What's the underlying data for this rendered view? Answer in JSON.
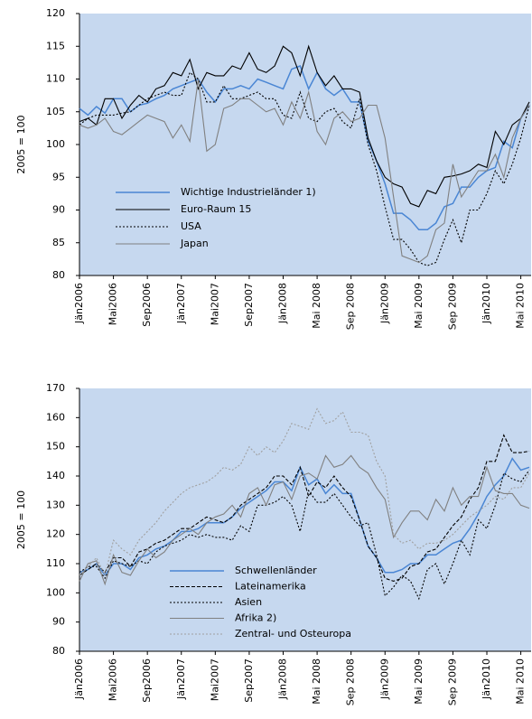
{
  "chart_data": [
    {
      "type": "line",
      "ylabel": "2005 = 100",
      "categories": [
        "Jän2006",
        null,
        null,
        null,
        "Mai2006",
        null,
        null,
        null,
        "Sep2006",
        null,
        null,
        null,
        "Jän2007",
        null,
        null,
        null,
        "Mai2007",
        null,
        null,
        null,
        "Sep2007",
        null,
        null,
        null,
        "Jän2008",
        null,
        null,
        null,
        "Mai 2008",
        null,
        null,
        null,
        "Sep 2008",
        null,
        null,
        null,
        "Jän2009",
        null,
        null,
        null,
        "Mai 2009",
        null,
        null,
        null,
        "Sep 2009",
        null,
        null,
        null,
        "Jän2010",
        null,
        null,
        null,
        "Mai 2010",
        null
      ],
      "ylim": [
        80,
        120
      ],
      "yticks": [
        80,
        85,
        90,
        95,
        100,
        105,
        110,
        115,
        120
      ],
      "series": [
        {
          "name": "Wichtige Industrieländer 1)",
          "color": "#4a86d4",
          "style": "solid",
          "values": [
            105.5,
            104.5,
            105.8,
            104.8,
            107,
            107,
            105,
            106,
            106.3,
            107,
            107.5,
            108.5,
            109,
            109.5,
            110,
            108,
            106.5,
            108.5,
            108.5,
            109,
            108.5,
            110,
            109.5,
            109,
            108.5,
            111.5,
            112,
            108.5,
            111,
            108.5,
            107.5,
            108.5,
            106.5,
            106.5,
            100.5,
            97.5,
            94,
            89.5,
            89.5,
            88.5,
            87,
            87,
            88,
            90.5,
            91,
            93.5,
            93.5,
            95,
            96,
            96.5,
            100.5,
            99.5,
            104,
            106
          ]
        },
        {
          "name": "Euro-Raum 15",
          "color": "#000000",
          "style": "solid",
          "values": [
            103.5,
            104,
            103,
            107,
            107,
            104,
            106,
            107.5,
            106.5,
            108.5,
            109,
            111,
            110.5,
            113,
            108.5,
            111,
            110.5,
            110.5,
            112,
            111.5,
            114,
            111.5,
            111,
            112,
            115,
            114,
            110.5,
            115,
            111,
            109,
            110.5,
            108.5,
            108.5,
            108,
            101,
            97.5,
            95,
            94,
            93.5,
            91,
            90.5,
            93,
            92.5,
            95,
            95.2,
            95.5,
            96,
            97,
            96.5,
            102,
            100,
            103,
            104,
            106.5
          ]
        },
        {
          "name": "USA",
          "color": "#000000",
          "style": "dotted",
          "values": [
            103,
            104,
            104.5,
            104.5,
            104.5,
            104.8,
            105,
            106,
            107,
            107.5,
            108,
            107.5,
            107.5,
            111,
            110,
            106.5,
            106.5,
            109,
            107,
            107,
            107.5,
            108,
            107,
            107,
            104.5,
            104,
            108,
            104,
            103.5,
            105,
            105.5,
            103.5,
            102.5,
            107,
            100,
            96,
            90.5,
            85.5,
            85.5,
            84,
            82,
            81.5,
            82,
            85.5,
            88.5,
            85,
            90,
            90,
            92.5,
            96,
            94,
            97,
            101,
            106
          ]
        },
        {
          "name": "Japan",
          "color": "#808080",
          "style": "solid",
          "values": [
            103,
            102.5,
            103,
            104,
            102,
            101.5,
            102.5,
            103.5,
            104.5,
            104,
            103.5,
            101,
            103,
            100.5,
            110,
            99,
            100,
            105.5,
            106,
            107,
            107,
            106,
            105,
            105.5,
            103,
            106.5,
            104,
            108,
            102,
            100,
            104,
            105,
            103.5,
            104,
            106,
            106,
            101,
            92,
            83,
            82.5,
            82,
            83,
            87,
            88,
            97,
            92,
            94,
            96,
            96,
            98.5,
            95,
            101,
            104,
            106
          ]
        }
      ]
    },
    {
      "type": "line",
      "ylabel": "2005 = 100",
      "categories": [
        "Jän2006",
        null,
        null,
        null,
        "Mai2006",
        null,
        null,
        null,
        "Sep2006",
        null,
        null,
        null,
        "Jän2007",
        null,
        null,
        null,
        "Mai2007",
        null,
        null,
        null,
        "Sep2007",
        null,
        null,
        null,
        "Jän2008",
        null,
        null,
        null,
        "Mai 2008",
        null,
        null,
        null,
        "Sep 2008",
        null,
        null,
        null,
        "Jän2009",
        null,
        null,
        null,
        "Mai 2009",
        null,
        null,
        null,
        "Sep 2009",
        null,
        null,
        null,
        "Jän2010",
        null,
        null,
        null,
        "Mai 2010",
        null
      ],
      "ylim": [
        80,
        170
      ],
      "yticks": [
        80,
        90,
        100,
        110,
        120,
        130,
        140,
        150,
        160,
        170
      ],
      "series": [
        {
          "name": "Schwellenländer",
          "color": "#4a86d4",
          "style": "solid",
          "values": [
            107,
            108,
            110,
            106,
            110,
            110,
            108,
            112,
            113,
            115,
            116,
            118,
            121,
            121,
            122,
            124,
            124,
            124,
            126,
            129,
            131,
            133,
            135,
            138,
            138,
            135,
            143,
            137,
            139,
            134,
            137,
            134,
            134,
            125,
            116,
            112,
            107,
            107,
            108,
            110,
            110,
            113,
            113,
            115,
            117,
            118,
            122,
            127,
            133,
            137,
            140,
            146,
            142,
            143
          ]
        },
        {
          "name": "Lateinamerika",
          "color": "#000000",
          "style": "dashed",
          "values": [
            106,
            108,
            110,
            107,
            112,
            112,
            109,
            114,
            115,
            117,
            118,
            120,
            122,
            122,
            124,
            126,
            125,
            124,
            126,
            130,
            132,
            134,
            136,
            140,
            140,
            137,
            143,
            133,
            138,
            136,
            140,
            136,
            133,
            125,
            116,
            112,
            105,
            104,
            105,
            109,
            110,
            114,
            115,
            119,
            123,
            126,
            132,
            136,
            145,
            145,
            154,
            148,
            148,
            148.5
          ]
        },
        {
          "name": "Asien",
          "color": "#000000",
          "style": "dotted",
          "values": [
            107,
            109,
            109,
            105,
            111,
            110,
            109,
            111,
            110,
            114,
            116,
            117,
            118,
            120,
            119,
            120,
            119,
            119,
            118,
            123,
            121,
            130,
            130,
            131,
            133,
            130,
            121,
            135,
            131,
            131,
            134,
            130,
            126,
            123,
            124,
            113,
            99,
            102,
            106,
            104,
            98,
            108,
            110,
            103,
            110,
            118,
            113,
            125,
            122,
            130,
            141,
            139,
            138,
            142
          ]
        },
        {
          "name": "Afrika 2)",
          "color": "#808080",
          "style": "solid",
          "values": [
            104,
            110,
            111,
            103,
            113,
            107,
            106,
            111,
            115,
            112,
            114,
            118,
            120,
            122,
            120,
            124,
            126,
            127,
            130,
            126,
            134,
            136,
            130,
            137,
            138,
            132,
            140,
            141,
            139,
            147,
            143,
            144,
            147,
            143,
            141,
            136,
            132,
            119,
            124,
            128,
            128,
            125,
            132,
            128,
            136,
            130,
            133,
            133,
            143,
            135,
            134,
            134,
            130,
            129
          ]
        },
        {
          "name": "Zentral- und Osteuropa",
          "color": "#a0a0a0",
          "style": "dotted",
          "values": [
            106,
            109,
            112,
            106,
            118,
            115,
            113,
            118,
            121,
            124,
            128,
            131,
            134,
            136,
            137,
            138,
            140,
            143,
            142,
            144,
            150,
            147,
            150,
            148,
            152,
            158,
            157,
            156,
            163,
            158,
            159,
            162,
            155,
            155,
            154,
            145,
            140,
            120,
            117,
            118,
            115,
            117,
            117,
            118,
            120,
            123,
            126,
            128,
            130,
            133,
            132,
            136,
            136,
            141
          ]
        }
      ]
    }
  ]
}
